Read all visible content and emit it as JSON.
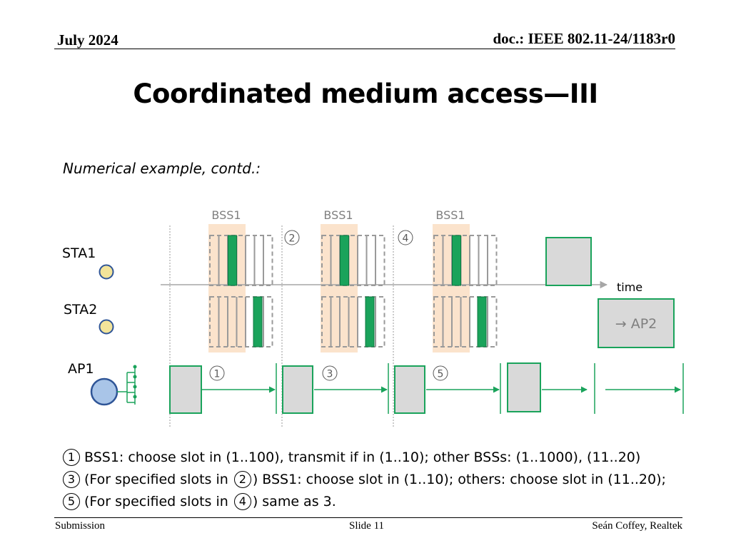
{
  "header": {
    "date": "July 2024",
    "doc": "doc.: IEEE 802.11-24/1183r0"
  },
  "title": "Coordinated medium access—III",
  "subtitle": "Numerical example, contd.:",
  "diagram": {
    "bss_labels": [
      "BSS1",
      "BSS1",
      "BSS1"
    ],
    "time_label": "time",
    "nodes": {
      "sta1": "STA1",
      "sta2": "STA2",
      "ap1": "AP1"
    },
    "ap2_box_label": "→ AP2",
    "step_markers": [
      "1",
      "2",
      "3",
      "4",
      "5"
    ],
    "colors": {
      "green": "#1aa35b",
      "slot_dash": "#9a9a9a",
      "bss_highlight": "#fbe3cc",
      "box_fill": "#d9d9d9",
      "sta_fill": "#f3e49a",
      "ap_fill": "#a9c5e8",
      "ap_stroke": "#2f5597",
      "axis_gray": "#a6a6a6"
    }
  },
  "notes": [
    {
      "marker": "1",
      "text": "BSS1: choose slot in (1..100), transmit if in (1..10); other BSSs: (1..1000), (11..20)"
    },
    {
      "marker": "3",
      "pre": "(For specified slots in ",
      "mid_marker": "2",
      "post": ") BSS1: choose slot in (1..10); others: choose slot in (11..20);"
    },
    {
      "marker": "5",
      "pre": "(For specified slots in ",
      "mid_marker": "4",
      "post": ") same as 3."
    }
  ],
  "footer": {
    "left": "Submission",
    "center": "Slide 11",
    "right": "Seán Coffey, Realtek"
  }
}
